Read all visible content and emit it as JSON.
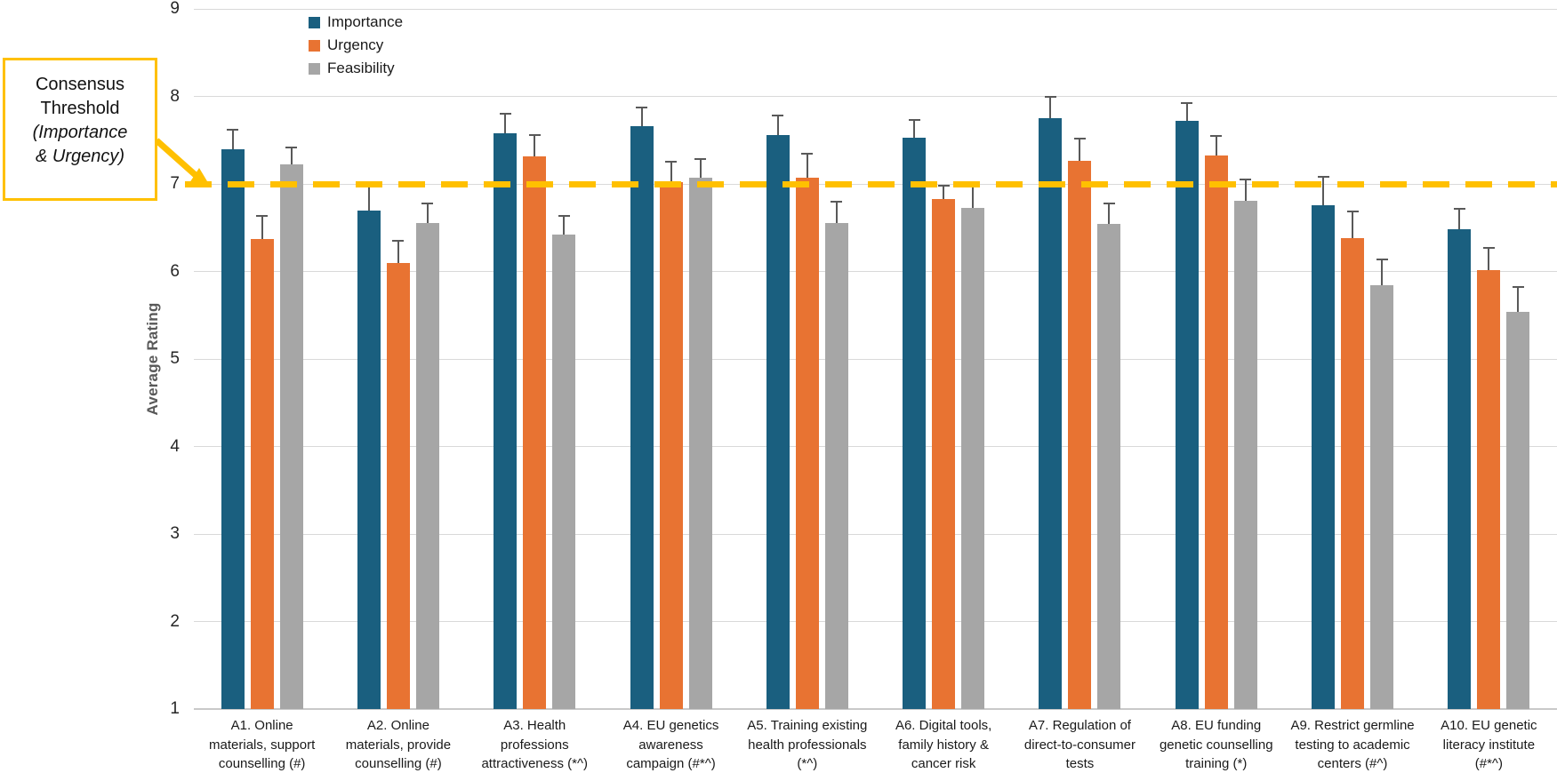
{
  "figure": {
    "callout": {
      "title": "Consensus\nThreshold",
      "subtitle": "(Importance\n& Urgency)"
    }
  },
  "colors": {
    "importance": "#1A5F7F",
    "urgency": "#E87332",
    "feasibility": "#A6A6A6",
    "threshold": "#FFC000",
    "error_bar": "#595959",
    "gridline": "#D9D9D9",
    "axis_line": "#C9C9C9"
  },
  "chart_data": {
    "type": "bar",
    "title": "",
    "xlabel": "",
    "ylabel": "Average Rating",
    "ylim": [
      1,
      9
    ],
    "yticks": [
      9,
      8,
      7,
      6,
      5,
      4,
      3,
      2,
      1
    ],
    "grid": true,
    "legend_position": "top-left-inside",
    "threshold": {
      "value": 7,
      "label": "Consensus Threshold (Importance & Urgency)",
      "color": "#FFC000",
      "style": "dashed"
    },
    "error_bars": "upper-only",
    "categories": [
      "A1. Online\nmaterials, support\ncounselling (#)",
      "A2. Online\nmaterials, provide\ncounselling (#)",
      "A3. Health\nprofessions\nattractiveness (*^)",
      "A4. EU genetics\nawareness\ncampaign (#*^)",
      "A5. Training existing\nhealth professionals\n(*^)",
      "A6. Digital tools,\nfamily history &\ncancer risk",
      "A7. Regulation of\ndirect-to-consumer\ntests",
      "A8. EU funding\ngenetic counselling\ntraining (*)",
      "A9. Restrict germline\ntesting to academic\ncenters (#^)",
      "A10. EU genetic\nliteracy institute\n(#*^)"
    ],
    "series": [
      {
        "name": "Importance",
        "color": "#1A5F7F",
        "values": [
          7.4,
          6.7,
          7.58,
          7.66,
          7.56,
          7.53,
          7.75,
          7.72,
          6.76,
          6.48
        ],
        "error_tops": [
          7.62,
          6.97,
          7.8,
          7.87,
          7.78,
          7.73,
          8.0,
          7.92,
          7.08,
          6.72
        ]
      },
      {
        "name": "Urgency",
        "color": "#E87332",
        "values": [
          6.37,
          6.1,
          7.31,
          7.02,
          7.07,
          6.83,
          7.26,
          7.32,
          6.38,
          6.02
        ],
        "error_tops": [
          6.63,
          6.35,
          7.56,
          7.25,
          7.35,
          6.98,
          7.52,
          7.55,
          6.69,
          6.27
        ]
      },
      {
        "name": "Feasibility",
        "color": "#A6A6A6",
        "values": [
          7.22,
          6.55,
          6.42,
          7.07,
          6.55,
          6.73,
          6.54,
          6.81,
          5.84,
          5.54
        ],
        "error_tops": [
          7.42,
          6.78,
          6.63,
          7.28,
          6.8,
          6.98,
          6.78,
          7.05,
          6.14,
          5.82
        ]
      }
    ]
  }
}
